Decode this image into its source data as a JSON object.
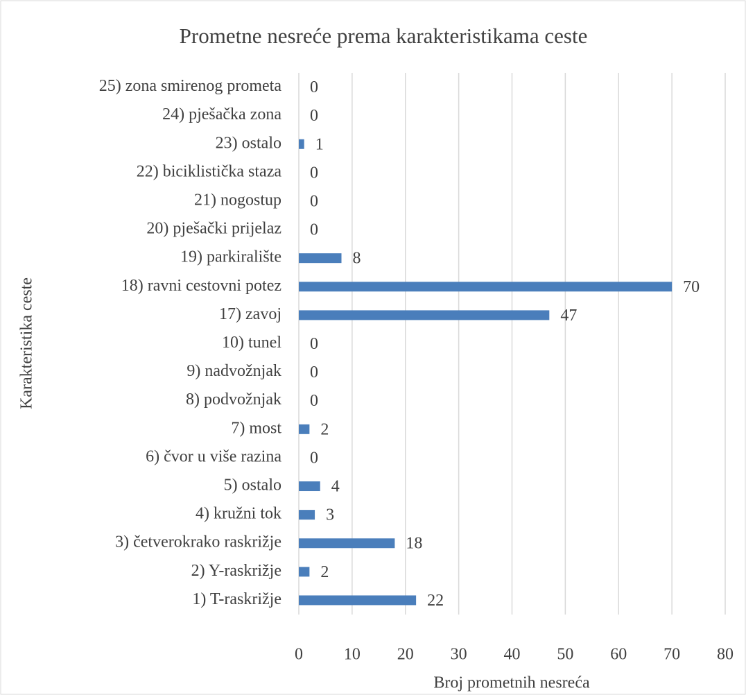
{
  "chart_data": {
    "type": "bar",
    "orientation": "horizontal",
    "title": "Prometne nesreće prema karakteristikama ceste",
    "x_label": "Broj prometnih nesreća",
    "y_label": "Karakteristika ceste",
    "categories": [
      "1) T-raskrižje",
      "2) Y-raskrižje",
      "3) četverokrako raskrižje",
      "4) kružni tok",
      "5) ostalo",
      "6) čvor u više razina",
      "7) most",
      "8) podvožnjak",
      "9) nadvožnjak",
      "10) tunel",
      "17) zavoj",
      "18) ravni cestovni potez",
      "19) parkiralište",
      "20) pješački prijelaz",
      "21) nogostup",
      "22) biciklistička staza",
      "23) ostalo",
      "24) pješačka zona",
      "25) zona smirenog prometa"
    ],
    "values": [
      22,
      2,
      18,
      3,
      4,
      0,
      2,
      0,
      0,
      0,
      47,
      70,
      8,
      0,
      0,
      0,
      1,
      0,
      0
    ],
    "color": "#4a7ebb",
    "xlim": [
      0,
      80
    ],
    "xticks": [
      0,
      10,
      20,
      30,
      40,
      50,
      60,
      70,
      80
    ],
    "grid": true
  }
}
